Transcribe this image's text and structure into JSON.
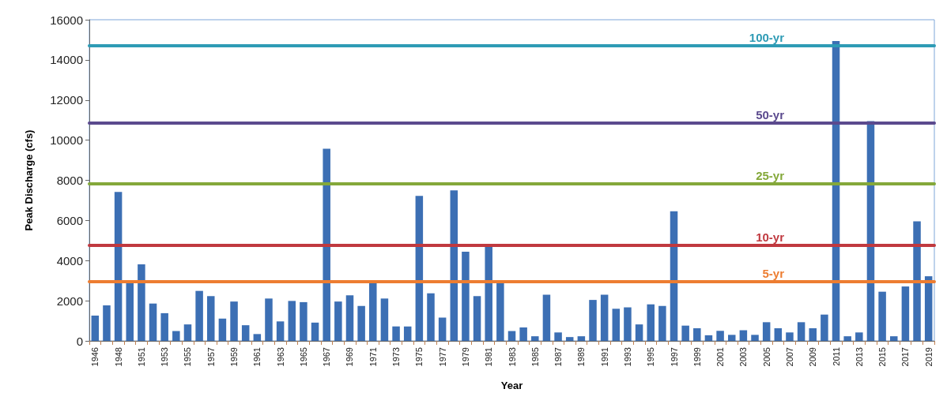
{
  "chart_data": {
    "type": "bar",
    "xlabel": "Year",
    "ylabel": "Peak Discharge (cfs)",
    "categories": [
      "1946",
      null,
      "1948",
      null,
      "1951",
      null,
      "1953",
      null,
      "1955",
      null,
      "1957",
      null,
      "1959",
      null,
      "1961",
      null,
      "1963",
      null,
      "1965",
      null,
      "1967",
      null,
      "1969",
      null,
      "1971",
      null,
      "1973",
      null,
      "1975",
      null,
      "1977",
      null,
      "1979",
      null,
      "1981",
      null,
      "1983",
      null,
      "1985",
      null,
      "1987",
      null,
      "1989",
      null,
      "1991",
      null,
      "1993",
      null,
      "1995",
      null,
      "1997",
      null,
      "1999",
      null,
      "2001",
      null,
      "2003",
      null,
      "2005",
      null,
      "2007",
      null,
      "2009",
      null,
      "2011",
      null,
      "2013",
      null,
      "2015",
      null,
      "2017",
      null,
      "2019"
    ],
    "values": [
      1260,
      1770,
      7420,
      2880,
      3810,
      1860,
      1380,
      490,
      820,
      2490,
      2230,
      1110,
      1960,
      780,
      340,
      2110,
      970,
      1990,
      1930,
      910,
      9570,
      1960,
      2270,
      1740,
      2880,
      2110,
      720,
      720,
      7220,
      2370,
      1160,
      7500,
      4440,
      2230,
      4690,
      2880,
      490,
      670,
      230,
      2300,
      420,
      190,
      230,
      2040,
      2300,
      1600,
      1670,
      820,
      1820,
      1740,
      6460,
      760,
      630,
      280,
      500,
      300,
      530,
      300,
      930,
      630,
      420,
      930,
      630,
      1310,
      14940,
      230,
      420,
      10950,
      2450,
      230,
      2710,
      5960,
      3220
    ],
    "color": "#3c6fb4",
    "ylim": [
      0,
      16000
    ],
    "yticks": [
      0,
      2000,
      4000,
      6000,
      8000,
      10000,
      12000,
      14000,
      16000
    ],
    "grid": false,
    "ref_lines": [
      {
        "axis": "y",
        "value": 14700,
        "label": "100-yr",
        "color": "#2e9bb5",
        "line_style": "solid"
      },
      {
        "axis": "y",
        "value": 10850,
        "label": "50-yr",
        "color": "#5b4a8e",
        "line_style": "solid"
      },
      {
        "axis": "y",
        "value": 7820,
        "label": "25-yr",
        "color": "#84a83a",
        "line_style": "solid"
      },
      {
        "axis": "y",
        "value": 4770,
        "label": "10-yr",
        "color": "#c0393f",
        "line_style": "solid"
      },
      {
        "axis": "y",
        "value": 2950,
        "label": "5-yr",
        "color": "#ed7d31",
        "line_style": "solid"
      }
    ]
  }
}
